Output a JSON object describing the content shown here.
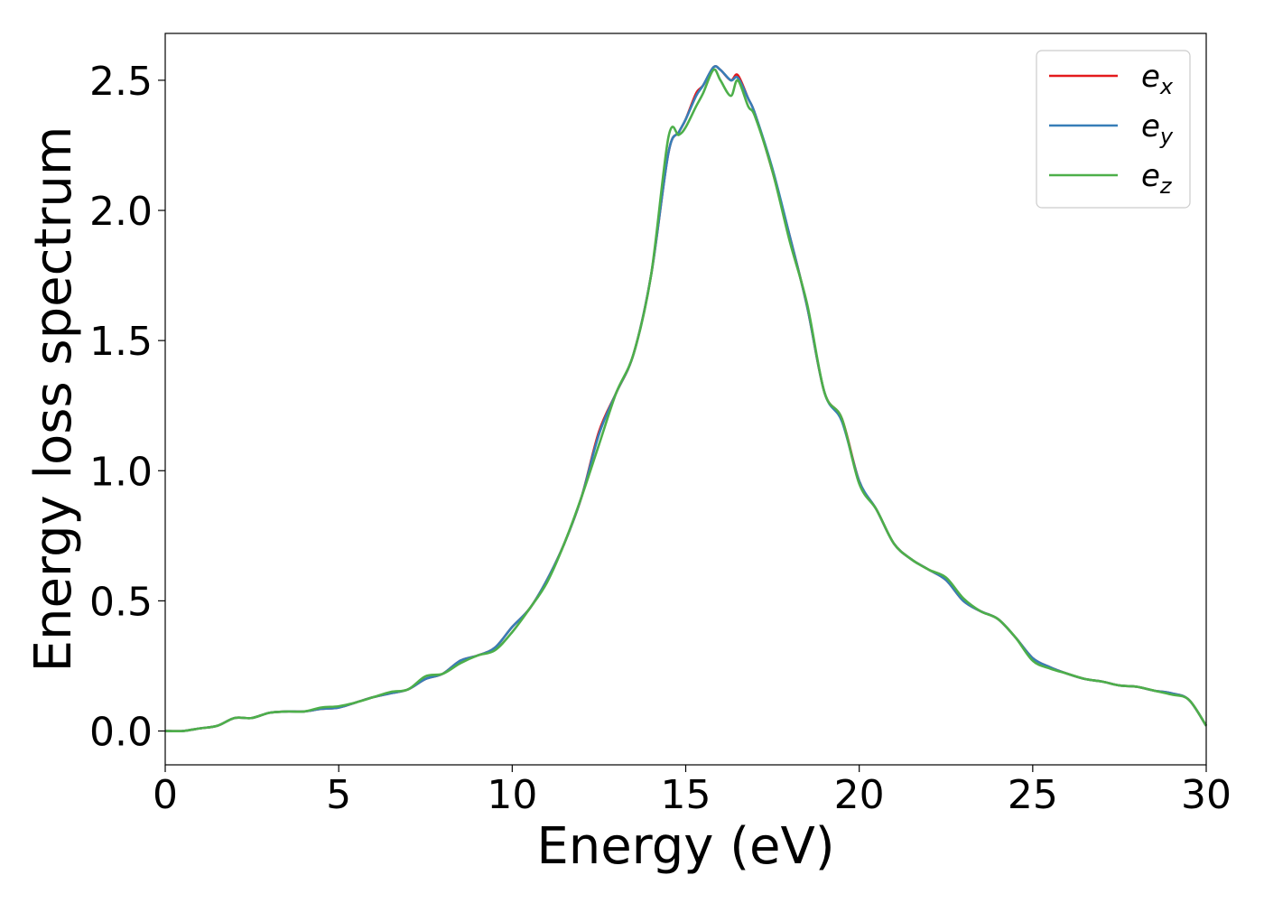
{
  "chart_data": {
    "type": "line",
    "xlabel": "Energy (eV)",
    "ylabel": "Energy loss spectrum",
    "xlim": [
      0,
      30
    ],
    "ylim": [
      -0.13,
      2.68
    ],
    "xticks": [
      0,
      5,
      10,
      15,
      20,
      25,
      30
    ],
    "xtick_labels": [
      "0",
      "5",
      "10",
      "15",
      "20",
      "25",
      "30"
    ],
    "yticks": [
      0.0,
      0.5,
      1.0,
      1.5,
      2.0,
      2.5
    ],
    "ytick_labels": [
      "0.0",
      "0.5",
      "1.0",
      "1.5",
      "2.0",
      "2.5"
    ],
    "grid": false,
    "legend_position": "top-right",
    "x": [
      0,
      0.5,
      1,
      1.5,
      2,
      2.5,
      3,
      3.5,
      4,
      4.5,
      5,
      5.5,
      6,
      6.5,
      7,
      7.5,
      8,
      8.5,
      9,
      9.5,
      10,
      10.5,
      11,
      11.5,
      12,
      12.5,
      13,
      13.5,
      14,
      14.5,
      14.8,
      15,
      15.3,
      15.5,
      15.8,
      16,
      16.3,
      16.5,
      16.8,
      17,
      17.5,
      18,
      18.5,
      19,
      19.5,
      20,
      20.5,
      21,
      21.5,
      22,
      22.5,
      23,
      23.5,
      24,
      24.5,
      25,
      25.5,
      26,
      26.5,
      27,
      27.5,
      28,
      28.5,
      29,
      29.5,
      30
    ],
    "series": [
      {
        "name_base": "e",
        "name_sub": "x",
        "color": "#e41a1c",
        "values": [
          0.0,
          0.0,
          0.01,
          0.02,
          0.05,
          0.05,
          0.07,
          0.075,
          0.075,
          0.085,
          0.09,
          0.11,
          0.13,
          0.145,
          0.16,
          0.2,
          0.22,
          0.27,
          0.29,
          0.32,
          0.4,
          0.47,
          0.58,
          0.72,
          0.9,
          1.15,
          1.3,
          1.45,
          1.75,
          2.22,
          2.3,
          2.35,
          2.45,
          2.48,
          2.55,
          2.54,
          2.5,
          2.52,
          2.43,
          2.37,
          2.15,
          1.9,
          1.63,
          1.3,
          1.2,
          0.96,
          0.85,
          0.72,
          0.66,
          0.62,
          0.58,
          0.5,
          0.46,
          0.43,
          0.36,
          0.28,
          0.245,
          0.22,
          0.2,
          0.19,
          0.175,
          0.17,
          0.155,
          0.145,
          0.12,
          0.02
        ]
      },
      {
        "name_base": "e",
        "name_sub": "y",
        "color": "#377eb8",
        "values": [
          0.0,
          0.0,
          0.01,
          0.02,
          0.05,
          0.05,
          0.07,
          0.075,
          0.075,
          0.085,
          0.09,
          0.11,
          0.13,
          0.145,
          0.16,
          0.2,
          0.22,
          0.27,
          0.29,
          0.32,
          0.4,
          0.47,
          0.58,
          0.72,
          0.9,
          1.14,
          1.3,
          1.45,
          1.75,
          2.22,
          2.3,
          2.35,
          2.44,
          2.48,
          2.55,
          2.54,
          2.5,
          2.51,
          2.43,
          2.37,
          2.16,
          1.9,
          1.63,
          1.3,
          1.19,
          0.96,
          0.85,
          0.72,
          0.66,
          0.62,
          0.58,
          0.5,
          0.46,
          0.43,
          0.36,
          0.28,
          0.245,
          0.22,
          0.2,
          0.19,
          0.175,
          0.17,
          0.155,
          0.145,
          0.12,
          0.02
        ]
      },
      {
        "name_base": "e",
        "name_sub": "z",
        "color": "#4daf4a",
        "values": [
          0.0,
          0.0,
          0.01,
          0.02,
          0.05,
          0.05,
          0.07,
          0.075,
          0.075,
          0.09,
          0.095,
          0.11,
          0.13,
          0.15,
          0.16,
          0.21,
          0.22,
          0.26,
          0.29,
          0.31,
          0.38,
          0.47,
          0.57,
          0.72,
          0.9,
          1.1,
          1.3,
          1.45,
          1.75,
          2.28,
          2.29,
          2.32,
          2.4,
          2.45,
          2.54,
          2.5,
          2.44,
          2.5,
          2.4,
          2.36,
          2.15,
          1.88,
          1.64,
          1.3,
          1.2,
          0.95,
          0.85,
          0.72,
          0.66,
          0.62,
          0.59,
          0.51,
          0.46,
          0.43,
          0.36,
          0.27,
          0.24,
          0.22,
          0.2,
          0.19,
          0.175,
          0.17,
          0.155,
          0.14,
          0.12,
          0.02
        ]
      }
    ]
  }
}
